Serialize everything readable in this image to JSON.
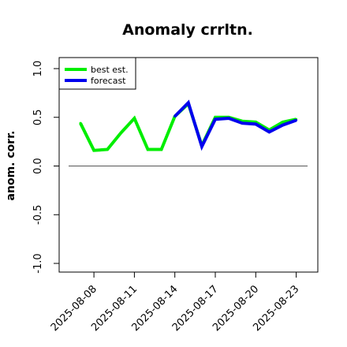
{
  "chart_data": {
    "type": "line",
    "title": "Anomaly crrltn.",
    "xlabel": "",
    "ylabel": "anom. corr.",
    "ylim": [
      -1.0,
      1.0
    ],
    "yticks": [
      "-1.0",
      "-0.5",
      "0.0",
      "0.5",
      "1.0"
    ],
    "x": [
      "2025-08-07",
      "2025-08-08",
      "2025-08-09",
      "2025-08-10",
      "2025-08-11",
      "2025-08-12",
      "2025-08-13",
      "2025-08-14",
      "2025-08-15",
      "2025-08-16",
      "2025-08-17",
      "2025-08-18",
      "2025-08-19",
      "2025-08-20",
      "2025-08-21",
      "2025-08-22",
      "2025-08-23"
    ],
    "xticks": [
      {
        "label": "2025-08-08",
        "color": "#000000"
      },
      {
        "label": "2025-08-11",
        "color": "#000000"
      },
      {
        "label": "2025-08-14",
        "color": "#228B22"
      },
      {
        "label": "2025-08-17",
        "color": "#000000"
      },
      {
        "label": "2025-08-20",
        "color": "#000000"
      },
      {
        "label": "2025-08-23",
        "color": "#000000"
      }
    ],
    "reference_line": 0.0,
    "grid": false,
    "legend_position": "top-left",
    "series": [
      {
        "name": "best est.",
        "color": "#00ee00",
        "values": [
          0.44,
          0.16,
          0.17,
          0.34,
          0.49,
          0.17,
          0.17,
          0.51,
          0.64,
          0.21,
          0.5,
          0.5,
          0.46,
          0.45,
          0.37,
          0.45,
          0.48
        ]
      },
      {
        "name": "forecast",
        "color": "#0000ee",
        "values": [
          null,
          null,
          null,
          null,
          null,
          null,
          null,
          0.51,
          0.65,
          0.2,
          0.48,
          0.49,
          0.44,
          0.43,
          0.35,
          0.42,
          0.47
        ]
      }
    ]
  }
}
